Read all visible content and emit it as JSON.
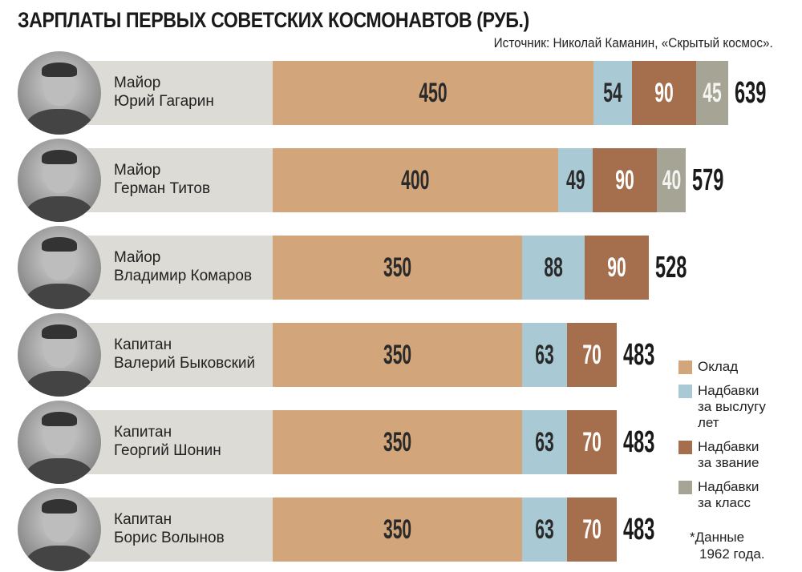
{
  "title": "ЗАРПЛАТЫ ПЕРВЫХ СОВЕТСКИХ КОСМОНАВТОВ (РУБ.)",
  "source": "Источник: Николай Каманин, «Скрытый космос».",
  "note": [
    "*Данные",
    "1962 года."
  ],
  "chart_data": {
    "type": "bar",
    "orientation": "horizontal",
    "stacked": true,
    "title": "ЗАРПЛАТЫ ПЕРВЫХ СОВЕТСКИХ КОСМОНАВТОВ (РУБ.)",
    "legend_position": "right",
    "grid": false,
    "series": [
      {
        "name": "Оклад",
        "color": "#d2a57b",
        "text_color": "#2a2a2a"
      },
      {
        "name": "Надбавки за выслугу лет",
        "color": "#a9c9d4",
        "text_color": "#2a2a2a"
      },
      {
        "name": "Надбавки за звание",
        "color": "#a56e4c",
        "text_color": "#ffffff"
      },
      {
        "name": "Надбавки за класс",
        "color": "#a5a495",
        "text_color": "#f4f4f0"
      }
    ],
    "legend_lines": [
      [
        "Оклад"
      ],
      [
        "Надбавки",
        "за выслугу",
        "лет"
      ],
      [
        "Надбавки",
        "за звание"
      ],
      [
        "Надбавки",
        "за класс"
      ]
    ],
    "rows": [
      {
        "rank": "Майор",
        "name": "Юрий Гагарин",
        "values": [
          450,
          54,
          90,
          45
        ],
        "total": 639
      },
      {
        "rank": "Майор",
        "name": "Герман Титов",
        "values": [
          400,
          49,
          90,
          40
        ],
        "total": 579
      },
      {
        "rank": "Майор",
        "name": "Владимир Комаров",
        "values": [
          350,
          88,
          90,
          null
        ],
        "total": 528
      },
      {
        "rank": "Капитан",
        "name": "Валерий Быковский",
        "values": [
          350,
          63,
          70,
          null
        ],
        "total": 483
      },
      {
        "rank": "Капитан",
        "name": "Георгий Шонин",
        "values": [
          350,
          63,
          70,
          null
        ],
        "total": 483
      },
      {
        "rank": "Капитан",
        "name": "Борис Волынов",
        "values": [
          350,
          63,
          70,
          null
        ],
        "total": 483
      }
    ]
  }
}
